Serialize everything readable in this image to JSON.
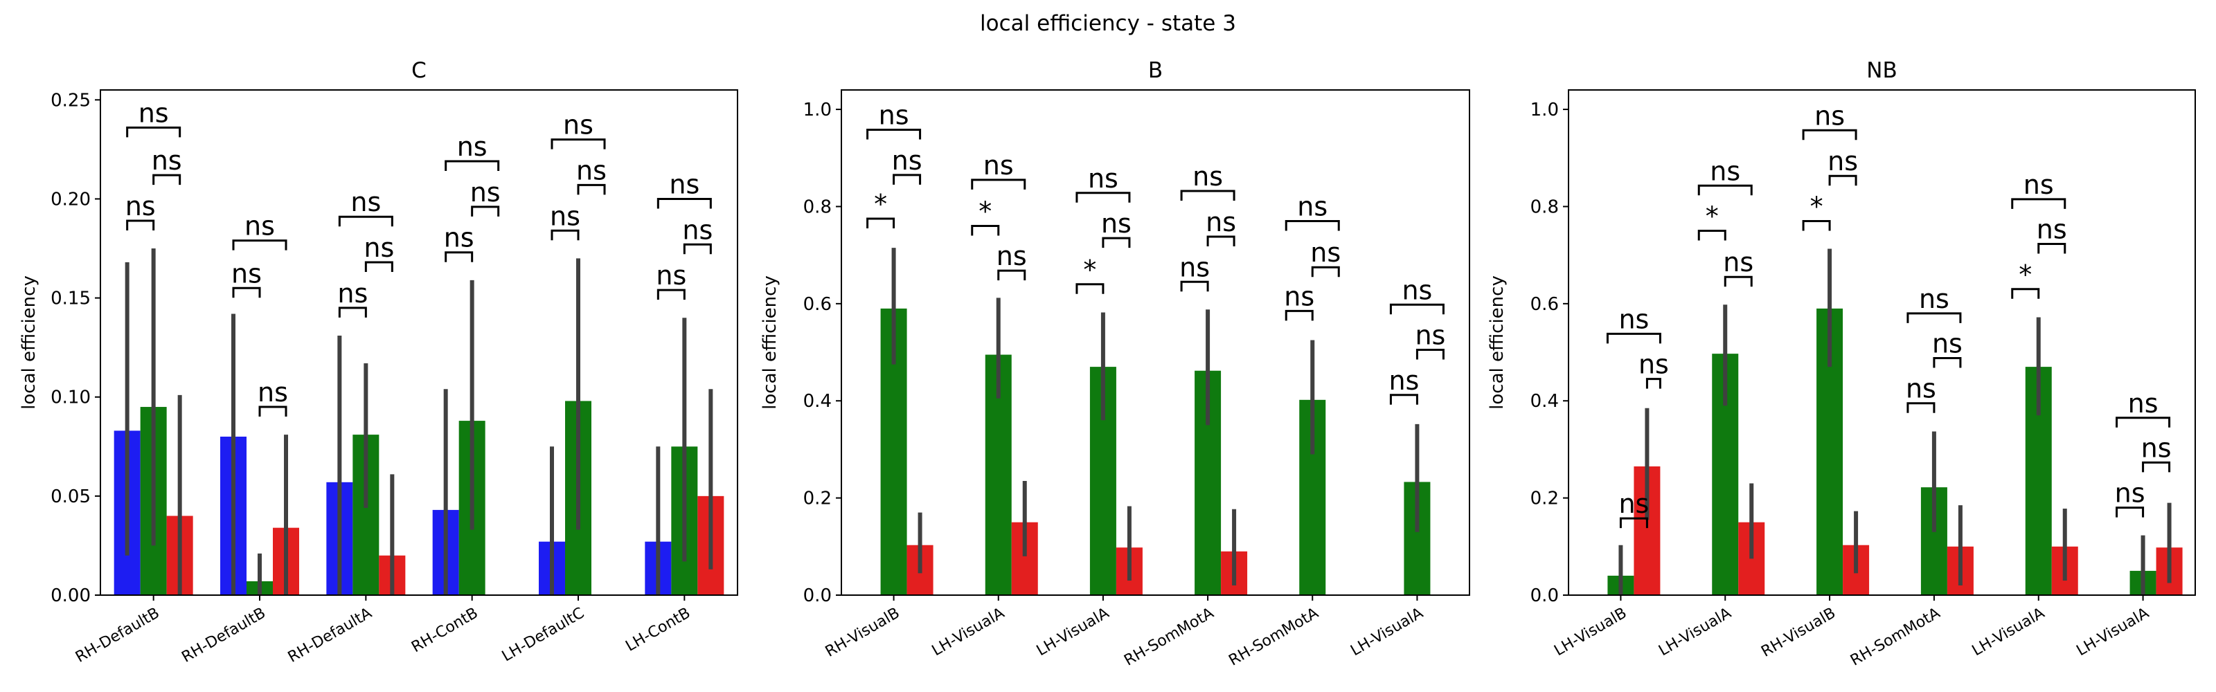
{
  "figure": {
    "title": "local efficiency - state 3",
    "colors": {
      "blue": "#1d1df2",
      "green": "#0f7a0f",
      "red": "#e31f1f",
      "errbar": "#404040"
    }
  },
  "chart_data": [
    {
      "type": "bar",
      "title": "C",
      "xlabel": "",
      "ylabel": "local efficiency",
      "ylim": [
        0,
        0.255
      ],
      "yticks": [
        "0.00",
        "0.05",
        "0.10",
        "0.15",
        "0.20",
        "0.25"
      ],
      "grid": false,
      "categories": [
        "RH-DefaultB",
        "RH-DefaultB",
        "RH-DefaultA",
        "RH-ContB",
        "LH-DefaultC",
        "LH-ContB"
      ],
      "series": [
        {
          "color": "#1d1df2",
          "values": [
            0.083,
            0.08,
            0.057,
            0.043,
            0.027,
            0.027
          ],
          "err_low": [
            0.02,
            0.0,
            0.0,
            0.0,
            0.0,
            0.0
          ],
          "err_high": [
            0.168,
            0.142,
            0.131,
            0.104,
            0.075,
            0.075
          ]
        },
        {
          "color": "#0f7a0f",
          "values": [
            0.095,
            0.007,
            0.081,
            0.088,
            0.098,
            0.075
          ],
          "err_low": [
            0.025,
            0.0,
            0.044,
            0.033,
            0.033,
            0.017
          ],
          "err_high": [
            0.175,
            0.021,
            0.117,
            0.159,
            0.17,
            0.14
          ]
        },
        {
          "color": "#e31f1f",
          "values": [
            0.04,
            0.034,
            0.02,
            null,
            null,
            0.05
          ],
          "err_low": [
            0.0,
            0.0,
            0.0,
            null,
            null,
            0.013
          ],
          "err_high": [
            0.101,
            0.081,
            0.061,
            null,
            null,
            0.104
          ]
        }
      ],
      "annotations": [
        {
          "text": "ns",
          "cat": 0,
          "from": 0,
          "to": 1,
          "y": 0.189
        },
        {
          "text": "ns",
          "cat": 0,
          "from": 1,
          "to": 2,
          "y": 0.212
        },
        {
          "text": "ns",
          "cat": 0,
          "from": 0,
          "to": 2,
          "y": 0.236
        },
        {
          "text": "ns",
          "cat": 1,
          "from": 0,
          "to": 1,
          "y": 0.155
        },
        {
          "text": "ns",
          "cat": 1,
          "from": 1,
          "to": 2,
          "y": 0.095
        },
        {
          "text": "ns",
          "cat": 1,
          "from": 0,
          "to": 2,
          "y": 0.179
        },
        {
          "text": "ns",
          "cat": 2,
          "from": 0,
          "to": 1,
          "y": 0.145
        },
        {
          "text": "ns",
          "cat": 2,
          "from": 1,
          "to": 2,
          "y": 0.168
        },
        {
          "text": "ns",
          "cat": 2,
          "from": 0,
          "to": 2,
          "y": 0.191
        },
        {
          "text": "ns",
          "cat": 3,
          "from": 0,
          "to": 1,
          "y": 0.173
        },
        {
          "text": "ns",
          "cat": 3,
          "from": 1,
          "to": 2,
          "y": 0.196
        },
        {
          "text": "ns",
          "cat": 3,
          "from": 0,
          "to": 2,
          "y": 0.219
        },
        {
          "text": "ns",
          "cat": 4,
          "from": 0,
          "to": 1,
          "y": 0.184
        },
        {
          "text": "ns",
          "cat": 4,
          "from": 1,
          "to": 2,
          "y": 0.207
        },
        {
          "text": "ns",
          "cat": 4,
          "from": 0,
          "to": 2,
          "y": 0.23
        },
        {
          "text": "ns",
          "cat": 5,
          "from": 0,
          "to": 1,
          "y": 0.154
        },
        {
          "text": "ns",
          "cat": 5,
          "from": 1,
          "to": 2,
          "y": 0.177
        },
        {
          "text": "ns",
          "cat": 5,
          "from": 0,
          "to": 2,
          "y": 0.2
        }
      ]
    },
    {
      "type": "bar",
      "title": "B",
      "xlabel": "",
      "ylabel": "local efficiency",
      "ylim": [
        0,
        1.04
      ],
      "yticks": [
        "0.0",
        "0.2",
        "0.4",
        "0.6",
        "0.8",
        "1.0"
      ],
      "grid": false,
      "categories": [
        "RH-VisualB",
        "LH-VisualA",
        "LH-VisualA",
        "RH-SomMotA",
        "RH-SomMotA",
        "LH-VisualA"
      ],
      "series": [
        {
          "color": "#1d1df2",
          "values": [
            null,
            null,
            null,
            null,
            null,
            null
          ],
          "err_low": [
            null,
            null,
            null,
            null,
            null,
            null
          ],
          "err_high": [
            null,
            null,
            null,
            null,
            null,
            null
          ]
        },
        {
          "color": "#0f7a0f",
          "values": [
            0.59,
            0.495,
            0.47,
            0.462,
            0.402,
            0.233
          ],
          "err_low": [
            0.475,
            0.405,
            0.36,
            0.35,
            0.29,
            0.13
          ],
          "err_high": [
            0.715,
            0.612,
            0.582,
            0.588,
            0.525,
            0.352
          ]
        },
        {
          "color": "#e31f1f",
          "values": [
            0.103,
            0.15,
            0.098,
            0.09,
            null,
            null
          ],
          "err_low": [
            0.045,
            0.08,
            0.03,
            0.02,
            null,
            null
          ],
          "err_high": [
            0.17,
            0.235,
            0.183,
            0.177,
            null,
            null
          ]
        }
      ],
      "annotations": [
        {
          "text": "*",
          "cat": 0,
          "from": 0,
          "to": 1,
          "y": 0.775
        },
        {
          "text": "ns",
          "cat": 0,
          "from": 1,
          "to": 2,
          "y": 0.865
        },
        {
          "text": "ns",
          "cat": 0,
          "from": 0,
          "to": 2,
          "y": 0.958
        },
        {
          "text": "*",
          "cat": 1,
          "from": 0,
          "to": 1,
          "y": 0.76
        },
        {
          "text": "ns",
          "cat": 1,
          "from": 1,
          "to": 2,
          "y": 0.668
        },
        {
          "text": "ns",
          "cat": 1,
          "from": 0,
          "to": 2,
          "y": 0.855
        },
        {
          "text": "*",
          "cat": 2,
          "from": 0,
          "to": 1,
          "y": 0.64
        },
        {
          "text": "ns",
          "cat": 2,
          "from": 1,
          "to": 2,
          "y": 0.735
        },
        {
          "text": "ns",
          "cat": 2,
          "from": 0,
          "to": 2,
          "y": 0.828
        },
        {
          "text": "ns",
          "cat": 3,
          "from": 0,
          "to": 1,
          "y": 0.645
        },
        {
          "text": "ns",
          "cat": 3,
          "from": 1,
          "to": 2,
          "y": 0.738
        },
        {
          "text": "ns",
          "cat": 3,
          "from": 0,
          "to": 2,
          "y": 0.832
        },
        {
          "text": "ns",
          "cat": 4,
          "from": 0,
          "to": 1,
          "y": 0.585
        },
        {
          "text": "ns",
          "cat": 4,
          "from": 1,
          "to": 2,
          "y": 0.675
        },
        {
          "text": "ns",
          "cat": 4,
          "from": 0,
          "to": 2,
          "y": 0.77
        },
        {
          "text": "ns",
          "cat": 5,
          "from": 0,
          "to": 1,
          "y": 0.412
        },
        {
          "text": "ns",
          "cat": 5,
          "from": 1,
          "to": 2,
          "y": 0.505
        },
        {
          "text": "ns",
          "cat": 5,
          "from": 0,
          "to": 2,
          "y": 0.598
        }
      ]
    },
    {
      "type": "bar",
      "title": "NB",
      "xlabel": "",
      "ylabel": "local efficiency",
      "ylim": [
        0,
        1.04
      ],
      "yticks": [
        "0.0",
        "0.2",
        "0.4",
        "0.6",
        "0.8",
        "1.0"
      ],
      "grid": false,
      "categories": [
        "LH-VisualB",
        "LH-VisualA",
        "RH-VisualB",
        "RH-SomMotA",
        "LH-VisualA",
        "LH-VisualA"
      ],
      "series": [
        {
          "color": "#1d1df2",
          "values": [
            null,
            null,
            null,
            null,
            null,
            null
          ],
          "err_low": [
            null,
            null,
            null,
            null,
            null,
            null
          ],
          "err_high": [
            null,
            null,
            null,
            null,
            null,
            null
          ]
        },
        {
          "color": "#0f7a0f",
          "values": [
            0.04,
            0.497,
            0.59,
            0.222,
            0.47,
            0.05
          ],
          "err_low": [
            0.0,
            0.39,
            0.47,
            0.13,
            0.37,
            0.0
          ],
          "err_high": [
            0.103,
            0.598,
            0.713,
            0.337,
            0.572,
            0.123
          ]
        },
        {
          "color": "#e31f1f",
          "values": [
            0.265,
            0.15,
            0.103,
            0.1,
            0.1,
            0.098
          ],
          "err_low": [
            0.155,
            0.075,
            0.045,
            0.02,
            0.03,
            0.025
          ],
          "err_high": [
            0.385,
            0.23,
            0.173,
            0.185,
            0.178,
            0.19
          ]
        }
      ],
      "annotations": [
        {
          "text": "ns",
          "cat": 0,
          "from": 1,
          "to": 2,
          "y": 0.158
        },
        {
          "text": "ns",
          "cat": 0,
          "from": 2,
          "to": 2.5,
          "y": 0.445
        },
        {
          "text": "ns",
          "cat": 0,
          "from": 0.5,
          "to": 2.5,
          "y": 0.538
        },
        {
          "text": "*",
          "cat": 1,
          "from": 0,
          "to": 1,
          "y": 0.75
        },
        {
          "text": "ns",
          "cat": 1,
          "from": 1,
          "to": 2,
          "y": 0.655
        },
        {
          "text": "ns",
          "cat": 1,
          "from": 0,
          "to": 2,
          "y": 0.843
        },
        {
          "text": "*",
          "cat": 2,
          "from": 0,
          "to": 1,
          "y": 0.77
        },
        {
          "text": "ns",
          "cat": 2,
          "from": 1,
          "to": 2,
          "y": 0.863
        },
        {
          "text": "ns",
          "cat": 2,
          "from": 0,
          "to": 2,
          "y": 0.957
        },
        {
          "text": "ns",
          "cat": 3,
          "from": 0,
          "to": 1,
          "y": 0.395
        },
        {
          "text": "ns",
          "cat": 3,
          "from": 1,
          "to": 2,
          "y": 0.488
        },
        {
          "text": "ns",
          "cat": 3,
          "from": 0,
          "to": 2,
          "y": 0.58
        },
        {
          "text": "*",
          "cat": 4,
          "from": 0,
          "to": 1,
          "y": 0.63
        },
        {
          "text": "ns",
          "cat": 4,
          "from": 1,
          "to": 2,
          "y": 0.723
        },
        {
          "text": "ns",
          "cat": 4,
          "from": 0,
          "to": 2,
          "y": 0.815
        },
        {
          "text": "ns",
          "cat": 5,
          "from": 0,
          "to": 1,
          "y": 0.18
        },
        {
          "text": "ns",
          "cat": 5,
          "from": 1,
          "to": 2,
          "y": 0.273
        },
        {
          "text": "ns",
          "cat": 5,
          "from": 0,
          "to": 2,
          "y": 0.365
        }
      ]
    }
  ]
}
